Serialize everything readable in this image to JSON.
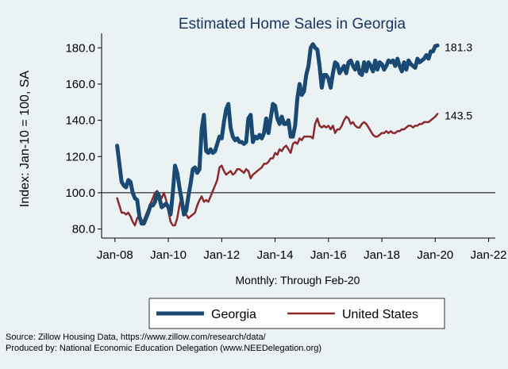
{
  "chart_data": {
    "type": "line",
    "title": "Estimated Home Sales in Georgia",
    "ylabel": "Index: Jan-10 = 100, SA",
    "xlabel": "Monthly: Through Feb-20",
    "ylim": [
      75,
      188
    ],
    "xlim": [
      "2007-07",
      "2022-04"
    ],
    "y_ticks": [
      "80.0",
      "100.0",
      "120.0",
      "140.0",
      "160.0",
      "180.0"
    ],
    "y_tick_values": [
      80,
      100,
      120,
      140,
      160,
      180
    ],
    "x_ticks": [
      "Jan-08",
      "Jan-10",
      "Jan-12",
      "Jan-14",
      "Jan-16",
      "Jan-18",
      "Jan-20",
      "Jan-22"
    ],
    "x_tick_dates": [
      "2008-01",
      "2010-01",
      "2012-01",
      "2014-01",
      "2016-01",
      "2018-01",
      "2020-01",
      "2022-01"
    ],
    "reference_line": 100,
    "grid": false,
    "legend_position": "bottom",
    "series": [
      {
        "name": "Georgia",
        "color": "#1a4a73",
        "end_label": "181.3",
        "points": [
          [
            "2008-02",
            126
          ],
          [
            "2008-03",
            116
          ],
          [
            "2008-04",
            106
          ],
          [
            "2008-05",
            104
          ],
          [
            "2008-06",
            103
          ],
          [
            "2008-07",
            107
          ],
          [
            "2008-08",
            106
          ],
          [
            "2008-09",
            100
          ],
          [
            "2008-10",
            97
          ],
          [
            "2008-11",
            96
          ],
          [
            "2008-12",
            87
          ],
          [
            "2009-01",
            83
          ],
          [
            "2009-02",
            83
          ],
          [
            "2009-03",
            86
          ],
          [
            "2009-04",
            89
          ],
          [
            "2009-05",
            93
          ],
          [
            "2009-06",
            93
          ],
          [
            "2009-07",
            95
          ],
          [
            "2009-08",
            100
          ],
          [
            "2009-09",
            97
          ],
          [
            "2009-10",
            92
          ],
          [
            "2009-11",
            93
          ],
          [
            "2009-12",
            94
          ],
          [
            "2010-01",
            92
          ],
          [
            "2010-02",
            88
          ],
          [
            "2010-03",
            100
          ],
          [
            "2010-04",
            115
          ],
          [
            "2010-05",
            111
          ],
          [
            "2010-06",
            103
          ],
          [
            "2010-07",
            96
          ],
          [
            "2010-08",
            88
          ],
          [
            "2010-09",
            90
          ],
          [
            "2010-10",
            98
          ],
          [
            "2010-11",
            105
          ],
          [
            "2010-12",
            113
          ],
          [
            "2011-01",
            114
          ],
          [
            "2011-02",
            111
          ],
          [
            "2011-03",
            113
          ],
          [
            "2011-04",
            135
          ],
          [
            "2011-05",
            143
          ],
          [
            "2011-06",
            123
          ],
          [
            "2011-07",
            122
          ],
          [
            "2011-08",
            124
          ],
          [
            "2011-09",
            122
          ],
          [
            "2011-10",
            123
          ],
          [
            "2011-11",
            127
          ],
          [
            "2011-12",
            131
          ],
          [
            "2012-01",
            130
          ],
          [
            "2012-02",
            139
          ],
          [
            "2012-03",
            146
          ],
          [
            "2012-04",
            149
          ],
          [
            "2012-05",
            136
          ],
          [
            "2012-06",
            131
          ],
          [
            "2012-07",
            129
          ],
          [
            "2012-08",
            130
          ],
          [
            "2012-09",
            128
          ],
          [
            "2012-10",
            128
          ],
          [
            "2012-11",
            127
          ],
          [
            "2012-12",
            128
          ],
          [
            "2013-01",
            141
          ],
          [
            "2013-02",
            143
          ],
          [
            "2013-03",
            128
          ],
          [
            "2013-04",
            131
          ],
          [
            "2013-05",
            130
          ],
          [
            "2013-06",
            132
          ],
          [
            "2013-07",
            130
          ],
          [
            "2013-08",
            133
          ],
          [
            "2013-09",
            141
          ],
          [
            "2013-10",
            133
          ],
          [
            "2013-11",
            141
          ],
          [
            "2013-12",
            149
          ],
          [
            "2014-01",
            148
          ],
          [
            "2014-02",
            141
          ],
          [
            "2014-03",
            138
          ],
          [
            "2014-04",
            142
          ],
          [
            "2014-05",
            138
          ],
          [
            "2014-06",
            138
          ],
          [
            "2014-07",
            140
          ],
          [
            "2014-08",
            131
          ],
          [
            "2014-09",
            131
          ],
          [
            "2014-10",
            137
          ],
          [
            "2014-11",
            152
          ],
          [
            "2014-12",
            160
          ],
          [
            "2015-01",
            154
          ],
          [
            "2015-02",
            156
          ],
          [
            "2015-03",
            165
          ],
          [
            "2015-04",
            170
          ],
          [
            "2015-05",
            180
          ],
          [
            "2015-06",
            182
          ],
          [
            "2015-07",
            180
          ],
          [
            "2015-08",
            179
          ],
          [
            "2015-09",
            170
          ],
          [
            "2015-10",
            158
          ],
          [
            "2015-11",
            165
          ],
          [
            "2015-12",
            165
          ],
          [
            "2016-01",
            163
          ],
          [
            "2016-02",
            158
          ],
          [
            "2016-03",
            166
          ],
          [
            "2016-04",
            172
          ],
          [
            "2016-05",
            171
          ],
          [
            "2016-06",
            166
          ],
          [
            "2016-07",
            168
          ],
          [
            "2016-08",
            170
          ],
          [
            "2016-09",
            166
          ],
          [
            "2016-10",
            172
          ],
          [
            "2016-11",
            173
          ],
          [
            "2016-12",
            170
          ],
          [
            "2017-01",
            168
          ],
          [
            "2017-02",
            172
          ],
          [
            "2017-03",
            166
          ],
          [
            "2017-04",
            165
          ],
          [
            "2017-05",
            172
          ],
          [
            "2017-06",
            167
          ],
          [
            "2017-07",
            172
          ],
          [
            "2017-08",
            170
          ],
          [
            "2017-09",
            167
          ],
          [
            "2017-10",
            173
          ],
          [
            "2017-11",
            168
          ],
          [
            "2017-12",
            172
          ],
          [
            "2018-01",
            171
          ],
          [
            "2018-02",
            168
          ],
          [
            "2018-03",
            170
          ],
          [
            "2018-04",
            173
          ],
          [
            "2018-05",
            172
          ],
          [
            "2018-06",
            173
          ],
          [
            "2018-07",
            170
          ],
          [
            "2018-08",
            174
          ],
          [
            "2018-09",
            170
          ],
          [
            "2018-10",
            167
          ],
          [
            "2018-11",
            172
          ],
          [
            "2018-12",
            168
          ],
          [
            "2019-01",
            173
          ],
          [
            "2019-02",
            171
          ],
          [
            "2019-03",
            170
          ],
          [
            "2019-04",
            169
          ],
          [
            "2019-05",
            174
          ],
          [
            "2019-06",
            172
          ],
          [
            "2019-07",
            173
          ],
          [
            "2019-08",
            174
          ],
          [
            "2019-09",
            176
          ],
          [
            "2019-10",
            174
          ],
          [
            "2019-11",
            178
          ],
          [
            "2019-12",
            178
          ],
          [
            "2020-01",
            181
          ],
          [
            "2020-02",
            181.3
          ]
        ]
      },
      {
        "name": "United States",
        "color": "#8b2a2d",
        "end_label": "143.5",
        "points": [
          [
            "2008-02",
            97
          ],
          [
            "2008-03",
            93
          ],
          [
            "2008-04",
            89
          ],
          [
            "2008-05",
            89
          ],
          [
            "2008-06",
            88
          ],
          [
            "2008-07",
            89
          ],
          [
            "2008-08",
            87
          ],
          [
            "2008-09",
            84
          ],
          [
            "2008-10",
            82
          ],
          [
            "2008-11",
            86
          ],
          [
            "2008-12",
            87
          ],
          [
            "2009-01",
            84
          ],
          [
            "2009-02",
            85
          ],
          [
            "2009-03",
            88
          ],
          [
            "2009-04",
            91
          ],
          [
            "2009-05",
            94
          ],
          [
            "2009-06",
            97
          ],
          [
            "2009-07",
            100
          ],
          [
            "2009-08",
            101
          ],
          [
            "2009-09",
            99
          ],
          [
            "2009-10",
            97
          ],
          [
            "2009-11",
            100
          ],
          [
            "2009-12",
            96
          ],
          [
            "2010-01",
            90
          ],
          [
            "2010-02",
            84
          ],
          [
            "2010-03",
            82
          ],
          [
            "2010-04",
            82
          ],
          [
            "2010-05",
            86
          ],
          [
            "2010-06",
            93
          ],
          [
            "2010-07",
            98
          ],
          [
            "2010-08",
            92
          ],
          [
            "2010-09",
            88
          ],
          [
            "2010-10",
            86
          ],
          [
            "2010-11",
            87
          ],
          [
            "2010-12",
            88
          ],
          [
            "2011-01",
            89
          ],
          [
            "2011-02",
            93
          ],
          [
            "2011-03",
            96
          ],
          [
            "2011-04",
            98
          ],
          [
            "2011-05",
            95
          ],
          [
            "2011-06",
            96
          ],
          [
            "2011-07",
            95
          ],
          [
            "2011-08",
            98
          ],
          [
            "2011-09",
            101
          ],
          [
            "2011-10",
            104
          ],
          [
            "2011-11",
            107
          ],
          [
            "2011-12",
            114
          ],
          [
            "2012-01",
            115
          ],
          [
            "2012-02",
            112
          ],
          [
            "2012-03",
            110
          ],
          [
            "2012-04",
            111
          ],
          [
            "2012-05",
            112
          ],
          [
            "2012-06",
            110
          ],
          [
            "2012-07",
            111
          ],
          [
            "2012-08",
            113
          ],
          [
            "2012-09",
            113
          ],
          [
            "2012-10",
            112
          ],
          [
            "2012-11",
            111
          ],
          [
            "2012-12",
            113
          ],
          [
            "2013-01",
            112
          ],
          [
            "2013-02",
            108
          ],
          [
            "2013-03",
            110
          ],
          [
            "2013-04",
            111
          ],
          [
            "2013-05",
            112
          ],
          [
            "2013-06",
            113
          ],
          [
            "2013-07",
            114
          ],
          [
            "2013-08",
            116
          ],
          [
            "2013-09",
            116
          ],
          [
            "2013-10",
            117
          ],
          [
            "2013-11",
            119
          ],
          [
            "2013-12",
            119
          ],
          [
            "2014-01",
            122
          ],
          [
            "2014-02",
            121
          ],
          [
            "2014-03",
            124
          ],
          [
            "2014-04",
            123
          ],
          [
            "2014-05",
            125
          ],
          [
            "2014-06",
            126
          ],
          [
            "2014-07",
            124
          ],
          [
            "2014-08",
            122
          ],
          [
            "2014-09",
            127
          ],
          [
            "2014-10",
            128
          ],
          [
            "2014-11",
            127
          ],
          [
            "2014-12",
            130
          ],
          [
            "2015-01",
            129
          ],
          [
            "2015-02",
            131
          ],
          [
            "2015-03",
            131
          ],
          [
            "2015-04",
            131
          ],
          [
            "2015-05",
            131
          ],
          [
            "2015-06",
            130
          ],
          [
            "2015-07",
            138
          ],
          [
            "2015-08",
            141
          ],
          [
            "2015-09",
            137
          ],
          [
            "2015-10",
            136
          ],
          [
            "2015-11",
            137
          ],
          [
            "2015-12",
            136
          ],
          [
            "2016-01",
            137
          ],
          [
            "2016-02",
            135
          ],
          [
            "2016-03",
            137
          ],
          [
            "2016-04",
            133
          ],
          [
            "2016-05",
            135
          ],
          [
            "2016-06",
            135
          ],
          [
            "2016-07",
            137
          ],
          [
            "2016-08",
            140
          ],
          [
            "2016-09",
            142
          ],
          [
            "2016-10",
            141
          ],
          [
            "2016-11",
            138
          ],
          [
            "2016-12",
            139
          ],
          [
            "2017-01",
            137
          ],
          [
            "2017-02",
            136
          ],
          [
            "2017-03",
            136
          ],
          [
            "2017-04",
            138
          ],
          [
            "2017-05",
            139
          ],
          [
            "2017-06",
            138
          ],
          [
            "2017-07",
            136
          ],
          [
            "2017-08",
            134
          ],
          [
            "2017-09",
            132
          ],
          [
            "2017-10",
            131
          ],
          [
            "2017-11",
            131
          ],
          [
            "2017-12",
            132
          ],
          [
            "2018-01",
            133
          ],
          [
            "2018-02",
            133
          ],
          [
            "2018-03",
            134
          ],
          [
            "2018-04",
            133
          ],
          [
            "2018-05",
            134
          ],
          [
            "2018-06",
            133
          ],
          [
            "2018-07",
            133
          ],
          [
            "2018-08",
            134
          ],
          [
            "2018-09",
            134
          ],
          [
            "2018-10",
            135
          ],
          [
            "2018-11",
            135
          ],
          [
            "2018-12",
            136
          ],
          [
            "2019-01",
            137
          ],
          [
            "2019-02",
            137
          ],
          [
            "2019-03",
            136
          ],
          [
            "2019-04",
            137
          ],
          [
            "2019-05",
            137
          ],
          [
            "2019-06",
            138
          ],
          [
            "2019-07",
            138
          ],
          [
            "2019-08",
            139
          ],
          [
            "2019-09",
            139
          ],
          [
            "2019-10",
            139
          ],
          [
            "2019-11",
            140
          ],
          [
            "2019-12",
            141
          ],
          [
            "2020-01",
            142
          ],
          [
            "2020-02",
            143.5
          ]
        ]
      }
    ]
  },
  "source_lines": [
    "Source: Zillow Housing Data, https://www.zillow.com/research/data/",
    "Produced by: National Economic Education Delegation (www.NEEDelegation.org)"
  ]
}
